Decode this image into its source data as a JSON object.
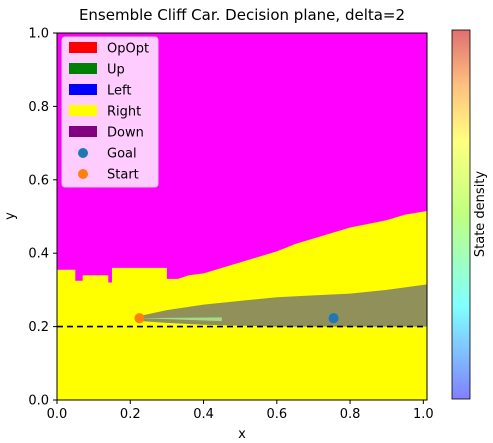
{
  "chart_data": {
    "type": "heatmap",
    "title": "Ensemble Cliff Car. Decision plane, delta=2",
    "xlabel": "x",
    "ylabel": "y",
    "xlim": [
      0.0,
      1.01
    ],
    "ylim": [
      0.0,
      1.0
    ],
    "xticks": [
      "0.0",
      "0.2",
      "0.4",
      "0.6",
      "0.8",
      "1.0"
    ],
    "yticks": [
      "0.0",
      "0.2",
      "0.4",
      "0.6",
      "0.8",
      "1.0"
    ],
    "xtick_values": [
      0.0,
      0.2,
      0.4,
      0.6,
      0.8,
      1.0
    ],
    "ytick_values": [
      0.0,
      0.2,
      0.4,
      0.6,
      0.8,
      1.0
    ],
    "colorbar_label": "State density",
    "cliff_line_y": 0.2,
    "legend": [
      {
        "label": "OpOpt",
        "kind": "patch",
        "color": "#ff0000"
      },
      {
        "label": "Up",
        "kind": "patch",
        "color": "#008000"
      },
      {
        "label": "Left",
        "kind": "patch",
        "color": "#0000ff"
      },
      {
        "label": "Right",
        "kind": "patch",
        "color": "#ffff00"
      },
      {
        "label": "Down",
        "kind": "patch",
        "color": "#800080"
      },
      {
        "label": "Goal",
        "kind": "marker",
        "color": "#1f77b4"
      },
      {
        "label": "Start",
        "kind": "marker",
        "color": "#ff7f0e"
      }
    ],
    "regions": {
      "background_color": "#ff00ff",
      "right_color": "#ffff00",
      "right_region_upper_boundary": [
        [
          0.0,
          0.355
        ],
        [
          0.05,
          0.355
        ],
        [
          0.05,
          0.325
        ],
        [
          0.07,
          0.325
        ],
        [
          0.07,
          0.34
        ],
        [
          0.14,
          0.34
        ],
        [
          0.14,
          0.32
        ],
        [
          0.15,
          0.32
        ],
        [
          0.15,
          0.36
        ],
        [
          0.3,
          0.36
        ],
        [
          0.3,
          0.33
        ],
        [
          0.33,
          0.33
        ],
        [
          0.36,
          0.34
        ],
        [
          0.4,
          0.345
        ],
        [
          0.45,
          0.36
        ],
        [
          0.5,
          0.375
        ],
        [
          0.55,
          0.39
        ],
        [
          0.6,
          0.405
        ],
        [
          0.65,
          0.425
        ],
        [
          0.7,
          0.44
        ],
        [
          0.75,
          0.455
        ],
        [
          0.8,
          0.47
        ],
        [
          0.85,
          0.48
        ],
        [
          0.9,
          0.49
        ],
        [
          0.95,
          0.505
        ],
        [
          1.01,
          0.515
        ]
      ]
    },
    "density_band": {
      "color": "#8a8a60",
      "upper": [
        [
          0.23,
          0.23
        ],
        [
          0.3,
          0.245
        ],
        [
          0.4,
          0.26
        ],
        [
          0.5,
          0.27
        ],
        [
          0.6,
          0.28
        ],
        [
          0.7,
          0.285
        ],
        [
          0.8,
          0.29
        ],
        [
          0.9,
          0.3
        ],
        [
          1.01,
          0.315
        ]
      ],
      "lower": [
        [
          0.23,
          0.215
        ],
        [
          0.3,
          0.21
        ],
        [
          0.4,
          0.205
        ],
        [
          0.6,
          0.2
        ],
        [
          0.8,
          0.2
        ],
        [
          1.01,
          0.2
        ]
      ]
    },
    "points": {
      "goal": {
        "x": 0.755,
        "y": 0.223,
        "color": "#1f77b4"
      },
      "start": {
        "x": 0.225,
        "y": 0.223,
        "color": "#ff7f0e"
      }
    }
  }
}
